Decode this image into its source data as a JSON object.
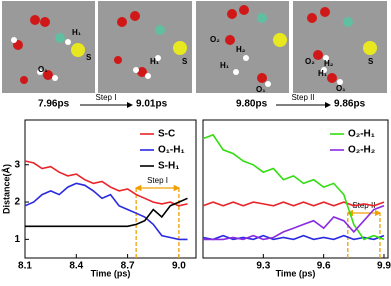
{
  "snapshots": [
    {
      "labels": [
        "H₁",
        "S",
        "O₁"
      ]
    },
    {
      "labels": [
        "H₁",
        "S"
      ]
    },
    {
      "labels": [
        "O₂",
        "H₂",
        "H₁",
        "O₁"
      ]
    },
    {
      "labels": [
        "S",
        "O₂",
        "H₂",
        "H₁",
        "O₁"
      ]
    }
  ],
  "timeline": {
    "t1": "7.96ps",
    "step1": "Step I",
    "t2": "9.01ps",
    "t3": "9.80ps",
    "step2": "Step II",
    "t4": "9.86ps"
  },
  "chart_data": [
    {
      "type": "line",
      "xlabel": "Time (ps)",
      "ylabel": "Distance(Å)",
      "x": [
        8.1,
        8.15,
        8.2,
        8.25,
        8.3,
        8.35,
        8.4,
        8.45,
        8.5,
        8.55,
        8.6,
        8.65,
        8.7,
        8.75,
        8.8,
        8.85,
        8.9,
        8.95,
        9.0,
        9.05
      ],
      "series": [
        {
          "name": "S-C",
          "color": "#e8252a",
          "values": [
            3.1,
            3.05,
            2.9,
            2.95,
            2.8,
            2.7,
            2.75,
            2.6,
            2.5,
            2.55,
            2.4,
            2.3,
            2.35,
            2.2,
            2.1,
            2.0,
            1.95,
            2.0,
            1.9,
            1.95
          ]
        },
        {
          "name": "O₁-H₁",
          "color": "#2a2ae0",
          "values": [
            1.9,
            2.0,
            2.2,
            2.3,
            2.2,
            2.4,
            2.5,
            2.45,
            2.3,
            2.1,
            2.2,
            1.9,
            1.8,
            1.7,
            1.6,
            1.4,
            1.1,
            1.05,
            1.0,
            1.0
          ]
        },
        {
          "name": "S-H₁",
          "color": "#000000",
          "values": [
            1.35,
            1.35,
            1.35,
            1.35,
            1.35,
            1.35,
            1.35,
            1.35,
            1.35,
            1.35,
            1.35,
            1.35,
            1.35,
            1.4,
            1.5,
            1.8,
            1.6,
            1.9,
            2.0,
            2.1
          ]
        }
      ],
      "xlim": [
        8.1,
        9.1
      ],
      "ylim": [
        0.5,
        4.2
      ],
      "xticks": [
        8.1,
        8.4,
        8.7,
        {
          "value": 9,
          "label": "9.0"
        }
      ],
      "yticks": [
        1,
        2,
        3
      ],
      "step": {
        "label": "Step I",
        "x": [
          8.75,
          9.0
        ]
      }
    },
    {
      "type": "line",
      "xlabel": "Time (ps)",
      "x": [
        9.0,
        9.05,
        9.1,
        9.15,
        9.2,
        9.25,
        9.3,
        9.35,
        9.4,
        9.45,
        9.5,
        9.55,
        9.6,
        9.65,
        9.7,
        9.75,
        9.8,
        9.85,
        9.9
      ],
      "series": [
        {
          "color": "#e8252a",
          "values": [
            1.9,
            2.0,
            1.9,
            2.0,
            1.9,
            2.0,
            1.95,
            1.9,
            2.0,
            1.9,
            2.0,
            1.9,
            2.0,
            1.9,
            2.0,
            1.9,
            1.95,
            1.9,
            2.0
          ]
        },
        {
          "color": "#2a2ae0",
          "values": [
            1.05,
            1.0,
            1.1,
            1.0,
            1.05,
            1.0,
            1.1,
            1.0,
            1.05,
            1.0,
            1.1,
            1.0,
            1.05,
            1.0,
            1.1,
            1.0,
            1.05,
            1.0,
            1.1
          ]
        },
        {
          "name": "O₂-H₁",
          "color": "#33dd11",
          "values": [
            3.7,
            3.8,
            3.4,
            3.3,
            3.1,
            3.0,
            2.8,
            2.9,
            2.6,
            2.7,
            2.5,
            2.6,
            2.4,
            2.5,
            2.2,
            1.4,
            1.0,
            1.1,
            1.0
          ]
        },
        {
          "name": "O₂-H₂",
          "color": "#8a2be2",
          "values": [
            1.0,
            1.0,
            1.0,
            1.05,
            1.0,
            1.1,
            1.0,
            1.05,
            1.2,
            1.3,
            1.4,
            1.5,
            1.3,
            1.6,
            1.5,
            1.2,
            1.5,
            1.8,
            1.9
          ]
        }
      ],
      "xlim": [
        9.0,
        9.92
      ],
      "ylim": [
        0.5,
        4.2
      ],
      "xticks": [
        9.3,
        9.6,
        9.9
      ],
      "step": {
        "label": "Step II",
        "x": [
          9.72,
          9.88
        ]
      }
    }
  ]
}
